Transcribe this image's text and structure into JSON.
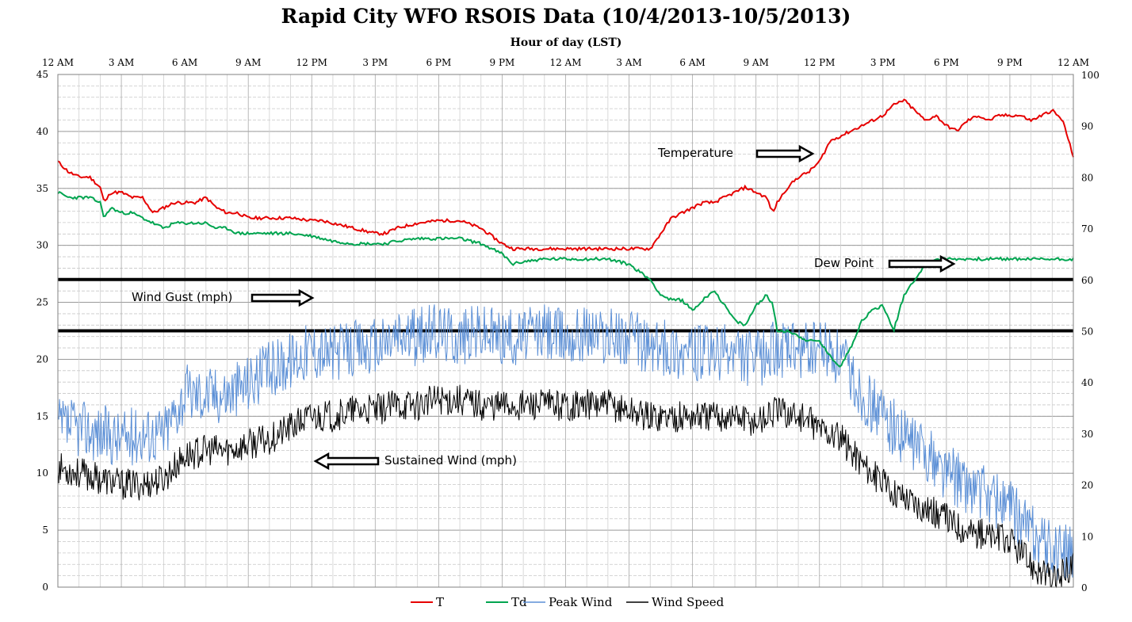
{
  "chart_data": {
    "type": "line",
    "title": "Rapid City WFO RSOIS Data (10/4/2013-10/5/2013)",
    "subtitle": "Hour of day (LST)",
    "x_tick_labels": [
      "12 AM",
      "3 AM",
      "6 AM",
      "9 AM",
      "12 PM",
      "3 PM",
      "6 PM",
      "9 PM",
      "12 AM",
      "3 AM",
      "6 AM",
      "9 AM",
      "12 PM",
      "3 PM",
      "6 PM",
      "9 PM",
      "12 AM"
    ],
    "x_unit": "hours since 10/4/2013 12 AM",
    "xlim": [
      0,
      48
    ],
    "y_left": {
      "range": [
        0,
        45
      ],
      "ticks": [
        0,
        5,
        10,
        15,
        20,
        25,
        30,
        35,
        40,
        45
      ],
      "applies_to": [
        "Peak Wind",
        "Wind Speed"
      ]
    },
    "y_right": {
      "range": [
        0,
        100
      ],
      "ticks": [
        0,
        10,
        20,
        30,
        40,
        50,
        60,
        70,
        80,
        90,
        100
      ],
      "applies_to": [
        "T",
        "Td"
      ]
    },
    "reference_lines_right_axis": [
      60,
      50
    ],
    "grid": true,
    "legend": {
      "placement": "bottom",
      "items": [
        "T",
        "Td",
        "Peak Wind",
        "Wind Speed"
      ]
    },
    "series": [
      {
        "name": "T",
        "axis": "right",
        "color": "#e60000",
        "x": [
          0,
          0.5,
          1,
          1.5,
          2,
          2.2,
          2.5,
          3,
          3.5,
          4,
          4.5,
          5,
          5.5,
          6,
          6.5,
          7,
          7.5,
          8,
          8.5,
          9,
          9.5,
          10,
          11,
          12,
          12.5,
          13,
          14,
          15,
          15.5,
          16,
          17,
          18,
          19,
          20,
          21,
          21.5,
          22,
          23,
          24,
          25,
          26,
          27,
          28,
          29,
          29.5,
          30,
          30.5,
          31,
          32,
          32.5,
          33,
          33.5,
          33.8,
          34,
          34.5,
          35,
          35.5,
          36,
          36.5,
          37,
          37.5,
          38,
          38.5,
          39,
          39.5,
          40,
          40.5,
          41,
          41.5,
          42,
          42.5,
          43,
          43.5,
          44,
          44.5,
          45,
          45.5,
          46,
          46.5,
          47,
          47.5,
          48
        ],
        "y": [
          83,
          81,
          80,
          80,
          78,
          75,
          77,
          77,
          76,
          76,
          73,
          74,
          75,
          75,
          75,
          76,
          74,
          73,
          73,
          72,
          72,
          72,
          72,
          71.5,
          71.5,
          71,
          70,
          69,
          69,
          70,
          71,
          71.5,
          71.5,
          70,
          67,
          66,
          66,
          66,
          66,
          66,
          66,
          66,
          66,
          72,
          73,
          74,
          75,
          75,
          77,
          78,
          77,
          76,
          73,
          75,
          78,
          80,
          81,
          83,
          87,
          88,
          89,
          90,
          91,
          92,
          94,
          95,
          93,
          91,
          92,
          90,
          89,
          91,
          92,
          91,
          92,
          92,
          92,
          91,
          92,
          93,
          91,
          84
        ]
      },
      {
        "name": "Td",
        "axis": "right",
        "color": "#00a550",
        "x": [
          0,
          0.5,
          1,
          1.5,
          2,
          2.2,
          2.5,
          3,
          3.5,
          4,
          4.5,
          5,
          5.5,
          6,
          6.5,
          7,
          7.5,
          8,
          8.5,
          9,
          9.5,
          10,
          11,
          12,
          12.5,
          13,
          14,
          15,
          15.5,
          16,
          17,
          18,
          19,
          20,
          21,
          21.5,
          22,
          23,
          24,
          25,
          26,
          27,
          28,
          28.5,
          29,
          29.5,
          30,
          30.5,
          31,
          32,
          32.5,
          33,
          33.5,
          33.8,
          34,
          34.5,
          35,
          35.5,
          36,
          36.5,
          37,
          37.5,
          38,
          38.5,
          39,
          39.5,
          40,
          40.5,
          41,
          41.5,
          42,
          43,
          44,
          45,
          46,
          47,
          47.5,
          48
        ],
        "y": [
          77,
          76,
          76,
          76,
          75,
          72,
          74,
          73,
          73,
          72,
          71,
          70,
          71,
          71,
          71,
          71,
          70,
          70,
          69,
          69,
          69,
          69,
          69,
          68.5,
          68,
          67.5,
          67,
          67,
          67,
          67.5,
          68,
          68,
          68,
          67,
          65,
          63,
          63.5,
          64,
          64,
          64,
          64,
          63,
          60,
          57,
          56,
          56,
          54,
          56,
          58,
          52,
          51,
          55,
          57,
          55,
          50,
          50,
          49,
          48,
          48,
          45,
          43,
          47,
          52,
          54,
          55,
          50,
          57,
          60,
          63,
          64,
          64,
          64,
          64,
          64,
          64,
          64,
          64,
          64
        ]
      },
      {
        "name": "Peak Wind",
        "axis": "left",
        "color": "#5b8fd6",
        "x": [
          0,
          1,
          2,
          3,
          4,
          5,
          6,
          7,
          8,
          9,
          10,
          11,
          12,
          13,
          14,
          15,
          16,
          17,
          18,
          19,
          20,
          21,
          22,
          23,
          24,
          25,
          26,
          27,
          28,
          29,
          30,
          31,
          32,
          33,
          34,
          35,
          36,
          37,
          38,
          39,
          40,
          41,
          42,
          43,
          44,
          45,
          46,
          47,
          48
        ],
        "y": [
          14,
          14,
          13.5,
          13,
          13.5,
          13.5,
          17,
          17,
          17,
          18,
          19,
          20,
          21,
          20.5,
          21,
          21,
          22,
          22,
          22.5,
          22,
          22.5,
          22,
          22,
          22.5,
          22,
          22.5,
          22,
          22,
          21,
          21,
          20.5,
          20.5,
          20.5,
          20,
          21,
          20.5,
          21,
          20,
          17,
          15,
          13,
          12,
          10,
          9,
          8,
          7,
          5,
          3,
          3
        ]
      },
      {
        "name": "Wind Speed",
        "axis": "left",
        "color": "#000000",
        "x": [
          0,
          1,
          2,
          3,
          4,
          5,
          6,
          7,
          8,
          9,
          10,
          11,
          12,
          13,
          14,
          15,
          16,
          17,
          18,
          19,
          20,
          21,
          22,
          23,
          24,
          25,
          26,
          27,
          28,
          29,
          30,
          31,
          32,
          33,
          34,
          35,
          36,
          37,
          38,
          39,
          40,
          41,
          42,
          43,
          44,
          45,
          46,
          47,
          48
        ],
        "y": [
          10.5,
          10,
          9.5,
          9,
          9,
          9.5,
          11.5,
          12,
          12,
          12.5,
          13,
          14,
          15,
          15,
          15.5,
          15.5,
          16,
          16,
          16.5,
          16.5,
          16,
          16,
          16,
          16,
          16,
          16,
          16,
          15.5,
          15,
          15,
          15,
          15,
          15,
          14.5,
          15.5,
          15,
          14,
          13,
          11,
          9,
          8,
          7,
          6,
          5,
          4.5,
          4,
          2,
          0.5,
          2
        ]
      }
    ],
    "annotations": [
      "Temperature",
      "Dew Point",
      "Wind Gust (mph)",
      "Sustained Wind (mph)"
    ]
  }
}
